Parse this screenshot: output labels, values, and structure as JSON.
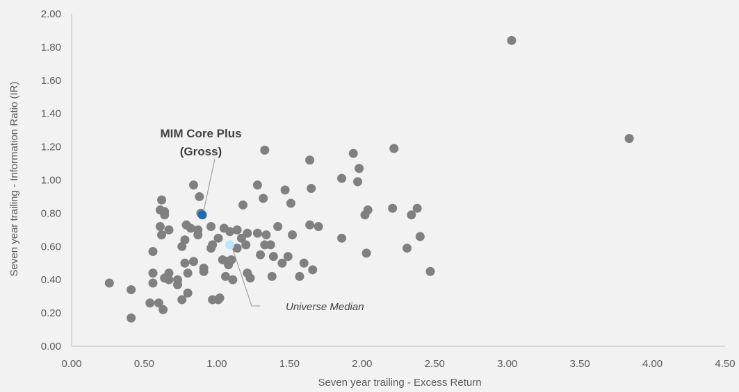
{
  "chart_data": {
    "type": "scatter",
    "title": "",
    "xlabel": "Seven year trailing -  Excess Return",
    "ylabel": "Seven year trailing - Information Ratio (IR)",
    "xlim": [
      0,
      4.5
    ],
    "ylim": [
      0,
      2.0
    ],
    "x_ticks": [
      "0.00",
      "0.50",
      "1.00",
      "1.50",
      "2.00",
      "2.50",
      "3.00",
      "3.50",
      "4.00",
      "4.50"
    ],
    "y_ticks": [
      "0.00",
      "0.20",
      "0.40",
      "0.60",
      "0.80",
      "1.00",
      "1.20",
      "1.40",
      "1.60",
      "1.80",
      "2.00"
    ],
    "grid": false,
    "colors": {
      "universe": "#808080",
      "highlight": "#1f6bb5",
      "median": "#bfe3f7",
      "leader": "#a6a6a6",
      "axis": "#bfbfbf"
    },
    "series": [
      {
        "role": "universe",
        "points": [
          [
            0.26,
            0.38
          ],
          [
            0.41,
            0.34
          ],
          [
            0.41,
            0.17
          ],
          [
            0.54,
            0.26
          ],
          [
            0.56,
            0.57
          ],
          [
            0.56,
            0.44
          ],
          [
            0.56,
            0.38
          ],
          [
            0.6,
            0.26
          ],
          [
            0.61,
            0.72
          ],
          [
            0.61,
            0.82
          ],
          [
            0.62,
            0.67
          ],
          [
            0.62,
            0.88
          ],
          [
            0.63,
            0.22
          ],
          [
            0.64,
            0.81
          ],
          [
            0.64,
            0.79
          ],
          [
            0.64,
            0.41
          ],
          [
            0.67,
            0.7
          ],
          [
            0.67,
            0.44
          ],
          [
            0.67,
            0.4
          ],
          [
            0.73,
            0.4
          ],
          [
            0.73,
            0.37
          ],
          [
            0.76,
            0.6
          ],
          [
            0.76,
            0.28
          ],
          [
            0.78,
            0.64
          ],
          [
            0.78,
            0.5
          ],
          [
            0.79,
            0.73
          ],
          [
            0.8,
            0.44
          ],
          [
            0.8,
            0.32
          ],
          [
            0.82,
            0.71
          ],
          [
            0.84,
            0.97
          ],
          [
            0.84,
            0.51
          ],
          [
            0.87,
            0.7
          ],
          [
            0.87,
            0.67
          ],
          [
            0.88,
            0.9
          ],
          [
            0.89,
            0.8
          ],
          [
            0.91,
            0.47
          ],
          [
            0.91,
            0.45
          ],
          [
            0.96,
            0.59
          ],
          [
            0.96,
            0.72
          ],
          [
            0.97,
            0.61
          ],
          [
            0.97,
            0.28
          ],
          [
            1.01,
            0.65
          ],
          [
            1.01,
            0.28
          ],
          [
            1.02,
            0.29
          ],
          [
            1.04,
            0.52
          ],
          [
            1.05,
            0.71
          ],
          [
            1.06,
            0.42
          ],
          [
            1.07,
            0.51
          ],
          [
            1.08,
            0.49
          ],
          [
            1.09,
            0.69
          ],
          [
            1.1,
            0.52
          ],
          [
            1.11,
            0.4
          ],
          [
            1.14,
            0.7
          ],
          [
            1.14,
            0.59
          ],
          [
            1.17,
            0.65
          ],
          [
            1.18,
            0.85
          ],
          [
            1.2,
            0.61
          ],
          [
            1.21,
            0.68
          ],
          [
            1.21,
            0.44
          ],
          [
            1.23,
            0.41
          ],
          [
            1.28,
            0.97
          ],
          [
            1.28,
            0.68
          ],
          [
            1.3,
            0.55
          ],
          [
            1.32,
            0.89
          ],
          [
            1.33,
            0.61
          ],
          [
            1.33,
            1.18
          ],
          [
            1.34,
            0.67
          ],
          [
            1.37,
            0.61
          ],
          [
            1.38,
            0.42
          ],
          [
            1.39,
            0.54
          ],
          [
            1.42,
            0.72
          ],
          [
            1.45,
            0.5
          ],
          [
            1.47,
            0.94
          ],
          [
            1.49,
            0.54
          ],
          [
            1.51,
            0.86
          ],
          [
            1.52,
            0.67
          ],
          [
            1.57,
            0.42
          ],
          [
            1.6,
            0.5
          ],
          [
            1.64,
            0.73
          ],
          [
            1.64,
            1.12
          ],
          [
            1.65,
            0.95
          ],
          [
            1.66,
            0.46
          ],
          [
            1.7,
            0.72
          ],
          [
            1.86,
            1.01
          ],
          [
            1.86,
            0.65
          ],
          [
            1.94,
            1.16
          ],
          [
            1.97,
            0.99
          ],
          [
            1.98,
            1.07
          ],
          [
            2.02,
            0.79
          ],
          [
            2.03,
            0.56
          ],
          [
            2.04,
            0.82
          ],
          [
            2.21,
            0.83
          ],
          [
            2.22,
            1.19
          ],
          [
            2.31,
            0.59
          ],
          [
            2.34,
            0.79
          ],
          [
            2.38,
            0.83
          ],
          [
            2.4,
            0.66
          ],
          [
            2.47,
            0.45
          ],
          [
            3.03,
            1.84
          ],
          [
            3.84,
            1.25
          ]
        ]
      },
      {
        "role": "highlight",
        "name": "MIM Core Plus (Gross)",
        "points": [
          [
            0.9,
            0.79
          ]
        ]
      },
      {
        "role": "median",
        "name": "Universe Median",
        "points": [
          [
            1.09,
            0.61
          ]
        ]
      }
    ],
    "annotations": [
      {
        "text_lines": [
          "MIM Core Plus",
          "(Gross)"
        ],
        "target": [
          0.9,
          0.79
        ]
      },
      {
        "text": "Universe Median",
        "target": [
          1.09,
          0.61
        ]
      }
    ]
  }
}
